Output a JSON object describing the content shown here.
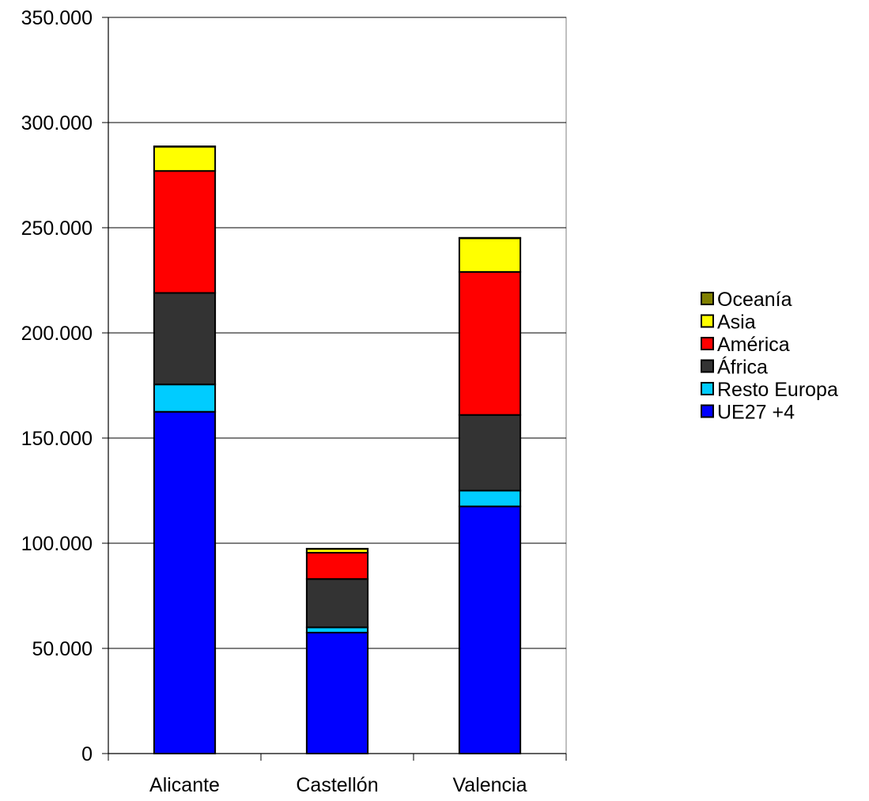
{
  "chart_data": {
    "type": "bar",
    "stacked": true,
    "categories": [
      "Alicante",
      "Castellón",
      "Valencia"
    ],
    "series": [
      {
        "name": "UE27 +4",
        "color": "#0000FF",
        "values": [
          162500,
          57500,
          117500
        ]
      },
      {
        "name": "Resto Europa",
        "color": "#00CCFF",
        "values": [
          13000,
          2500,
          7500
        ]
      },
      {
        "name": "África",
        "color": "#333333",
        "values": [
          43500,
          23000,
          36000
        ]
      },
      {
        "name": "América",
        "color": "#FF0000",
        "values": [
          58000,
          12500,
          68000
        ]
      },
      {
        "name": "Asia",
        "color": "#FFFF00",
        "values": [
          11500,
          1800,
          16000
        ]
      },
      {
        "name": "Oceanía",
        "color": "#808000",
        "values": [
          200,
          100,
          200
        ]
      }
    ],
    "legend_order": [
      "Oceanía",
      "Asia",
      "América",
      "África",
      "Resto Europa",
      "UE27 +4"
    ],
    "y_ticks": [
      "0",
      "50.000",
      "100.000",
      "150.000",
      "200.000",
      "250.000",
      "300.000",
      "350.000"
    ],
    "y_tick_values": [
      0,
      50000,
      100000,
      150000,
      200000,
      250000,
      300000,
      350000
    ],
    "ylim": [
      0,
      350000
    ],
    "grid": true,
    "legend_position": "right",
    "title": "",
    "xlabel": "",
    "ylabel": ""
  }
}
